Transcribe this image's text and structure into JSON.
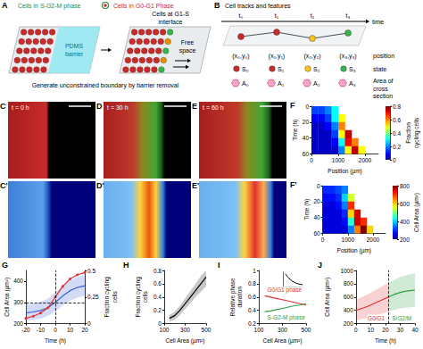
{
  "letters": [
    "A",
    "B",
    "C",
    "D",
    "E",
    "C'",
    "D'",
    "E'",
    "F",
    "F'",
    "G",
    "H",
    "I",
    "J"
  ],
  "diagram": {
    "A": {
      "legend_cycling": "Cells in S-G2-M phase",
      "legend_resting": "Cells in G0-G1 Phase",
      "barrier": "PDMS barrier",
      "interface": "Cells at G1-S interface",
      "free": "Free space",
      "caption": "Generate unconstrained boundary by barrier removal"
    },
    "B": {
      "title": "Cell tracks and features",
      "time": "time",
      "times": [
        "t₀",
        "t₁",
        "t₂",
        "t₃"
      ],
      "position": "position",
      "positions": [
        "(x₀,y₀)",
        "(x₁,y₁)",
        "(x₂,y₂)",
        "(x₃,y₃)"
      ],
      "state": "state",
      "states": [
        "S₀",
        "S₁",
        "S₂",
        "S₃"
      ],
      "area": "Area of cross section",
      "areas": [
        "A₀",
        "A₁",
        "A₂",
        "A₃"
      ]
    },
    "images": [
      "t = 0 h",
      "t = 30 h",
      "t = 60 h"
    ]
  },
  "chart_data": [
    {
      "type": "heatmap",
      "x_label": "Position (µm)",
      "y_label": "Time (h)",
      "x": [
        0,
        250,
        500,
        750,
        1000,
        1250,
        1500,
        1750,
        2000,
        2250,
        2500
      ],
      "y": [
        0,
        10,
        20,
        30,
        40,
        50,
        60
      ],
      "z": [
        [
          0.15,
          0.15,
          0.2,
          0.3,
          null,
          null,
          null,
          null,
          null,
          null
        ],
        [
          0.1,
          0.1,
          0.15,
          0.3,
          0.5,
          null,
          null,
          null,
          null,
          null
        ],
        [
          0.05,
          0.05,
          0.1,
          0.2,
          0.6,
          null,
          null,
          null,
          null,
          null
        ],
        [
          0.05,
          0.05,
          0.05,
          0.15,
          0.5,
          0.75,
          null,
          null,
          null,
          null
        ],
        [
          0.05,
          0.05,
          0.05,
          0.1,
          0.3,
          0.7,
          0.6,
          null,
          null,
          null
        ],
        [
          0.05,
          0.05,
          0.05,
          0.05,
          0.2,
          0.5,
          0.75,
          0.5,
          null,
          null
        ]
      ],
      "xlim": [
        0,
        2500
      ],
      "xticks": [
        0,
        1000,
        2000
      ],
      "ylim": [
        60,
        0
      ],
      "yticks": [
        0,
        20,
        40,
        60
      ],
      "colorbar": {
        "label": "Fraction cycling cells",
        "range": [
          0,
          0.8
        ],
        "ticks": [
          0,
          0.2,
          0.4,
          0.6,
          0.8
        ]
      }
    },
    {
      "type": "heatmap",
      "x_label": "Position (µm)",
      "y_label": "Time (h)",
      "x": [
        0,
        250,
        500,
        750,
        1000,
        1250,
        1500,
        1750,
        2000,
        2250,
        2500
      ],
      "y": [
        0,
        10,
        20,
        30,
        40,
        50,
        60
      ],
      "z": [
        [
          300,
          300,
          320,
          350,
          null,
          null,
          null,
          null,
          null,
          null
        ],
        [
          280,
          280,
          300,
          400,
          550,
          null,
          null,
          null,
          null,
          null
        ],
        [
          250,
          250,
          280,
          350,
          700,
          null,
          null,
          null,
          null,
          null
        ],
        [
          250,
          250,
          250,
          300,
          600,
          750,
          null,
          null,
          null,
          null
        ],
        [
          250,
          250,
          250,
          280,
          450,
          750,
          700,
          null,
          null,
          null
        ],
        [
          250,
          250,
          250,
          250,
          350,
          650,
          800,
          600,
          null,
          null
        ]
      ],
      "xlim": [
        0,
        2500
      ],
      "xticks": [
        0,
        1000,
        2000
      ],
      "ylim": [
        60,
        0
      ],
      "yticks": [
        0,
        20,
        40,
        60
      ],
      "colorbar": {
        "label": "Cell Area (µm²)",
        "range": [
          200,
          800
        ],
        "ticks": [
          200,
          400,
          600,
          800
        ]
      }
    },
    {
      "type": "line",
      "x_label": "Time (h)",
      "y_label": "Cell Area (µm²)",
      "y2_label": "Fraction cycling cells",
      "x": [
        -20,
        -15,
        -10,
        -5,
        0,
        5,
        10,
        15,
        20
      ],
      "series": [
        {
          "color": "#3b5bdb",
          "values": [
            250,
            255,
            262,
            275,
            300,
            330,
            355,
            370,
            378
          ],
          "band_low": [
            215,
            218,
            224,
            236,
            258,
            285,
            308,
            322,
            330
          ],
          "band_high": [
            290,
            295,
            302,
            318,
            345,
            378,
            405,
            420,
            428
          ]
        },
        {
          "color": "#e03131",
          "axis": "y2",
          "marker": "circle",
          "values": [
            0.05,
            0.07,
            0.1,
            0.15,
            0.25,
            0.35,
            0.42,
            0.46,
            0.48
          ]
        }
      ],
      "xlim": [
        -20,
        20
      ],
      "xticks": [
        -20,
        -10,
        0,
        10,
        20
      ],
      "ylim": [
        200,
        450
      ],
      "yticks": [
        200,
        300,
        400
      ],
      "y2lim": [
        0,
        0.5
      ],
      "y2ticks": [
        0,
        0.25,
        0.5
      ],
      "reference_lines": {
        "x": 0,
        "y": 300
      }
    },
    {
      "type": "line",
      "x_label": "Cell Area (µm²)",
      "y_label": "Fraction cycling cells",
      "x": [
        150,
        200,
        250,
        300,
        350,
        400,
        450,
        500
      ],
      "series": [
        {
          "color": "#000000",
          "values": [
            0.08,
            0.12,
            0.2,
            0.3,
            0.4,
            0.5,
            0.6,
            0.7
          ],
          "band_low": [
            0.03,
            0.06,
            0.13,
            0.22,
            0.31,
            0.4,
            0.48,
            0.56
          ],
          "band_high": [
            0.13,
            0.18,
            0.27,
            0.38,
            0.49,
            0.6,
            0.72,
            0.8
          ]
        }
      ],
      "xlim": [
        100,
        500
      ],
      "xticks": [
        100,
        300,
        500
      ],
      "ylim": [
        0,
        0.8
      ],
      "yticks": [
        0,
        0.2,
        0.4,
        0.6,
        0.8
      ]
    },
    {
      "type": "line",
      "x_label": "Cell Area (µm²)",
      "y_label": "Relative phase duration",
      "x": [
        150,
        200,
        250,
        300,
        350,
        400,
        450,
        500
      ],
      "series": [
        {
          "name": "G0/G1 phase",
          "color": "#e03131",
          "values": [
            0.62,
            0.6,
            0.58,
            0.56,
            0.54,
            0.52,
            0.5,
            0.48
          ]
        },
        {
          "name": "S-G2-M phase",
          "color": "#2f9e44",
          "values": [
            0.38,
            0.39,
            0.41,
            0.43,
            0.45,
            0.47,
            0.48,
            0.5
          ]
        }
      ],
      "xlim": [
        100,
        500
      ],
      "xticks": [
        100,
        300,
        500
      ],
      "ylim": [
        0.2,
        1
      ],
      "yticks": [
        0.2,
        0.4,
        0.6,
        0.8,
        1
      ],
      "inset": {
        "x": [
          150,
          200,
          250,
          300,
          350,
          400,
          450,
          500
        ],
        "values": [
          1,
          0.9,
          0.82,
          0.76,
          0.72,
          0.69,
          0.67,
          0.66
        ],
        "color": "#000000",
        "xlim": [
          100,
          500
        ],
        "ylim": [
          0.6,
          1.05
        ],
        "tick_labels": false
      }
    },
    {
      "type": "line",
      "x_label": "Time (h)",
      "y_label": "Cell Area (µm²)",
      "series": [
        {
          "name": "G0/G1",
          "color": "#e03131",
          "x": [
            0,
            4,
            8,
            12,
            16,
            20,
            22
          ],
          "values": [
            400,
            430,
            460,
            500,
            540,
            580,
            600
          ],
          "band_low": [
            250,
            270,
            290,
            310,
            340,
            370,
            380
          ],
          "band_high": [
            560,
            600,
            640,
            690,
            740,
            790,
            810
          ]
        },
        {
          "name": "S/G2/M",
          "color": "#2f9e44",
          "x": [
            22,
            26,
            30,
            34,
            38,
            40
          ],
          "values": [
            600,
            640,
            670,
            690,
            700,
            705
          ],
          "band_low": [
            380,
            410,
            430,
            440,
            450,
            455
          ],
          "band_high": [
            810,
            860,
            900,
            930,
            950,
            955
          ]
        }
      ],
      "xlim": [
        0,
        40
      ],
      "xticks": [
        0,
        10,
        20,
        30,
        40
      ],
      "ylim": [
        200,
        1000
      ],
      "yticks": [
        200,
        400,
        600,
        800,
        1000
      ],
      "reference_lines": {
        "x": 22
      }
    }
  ]
}
